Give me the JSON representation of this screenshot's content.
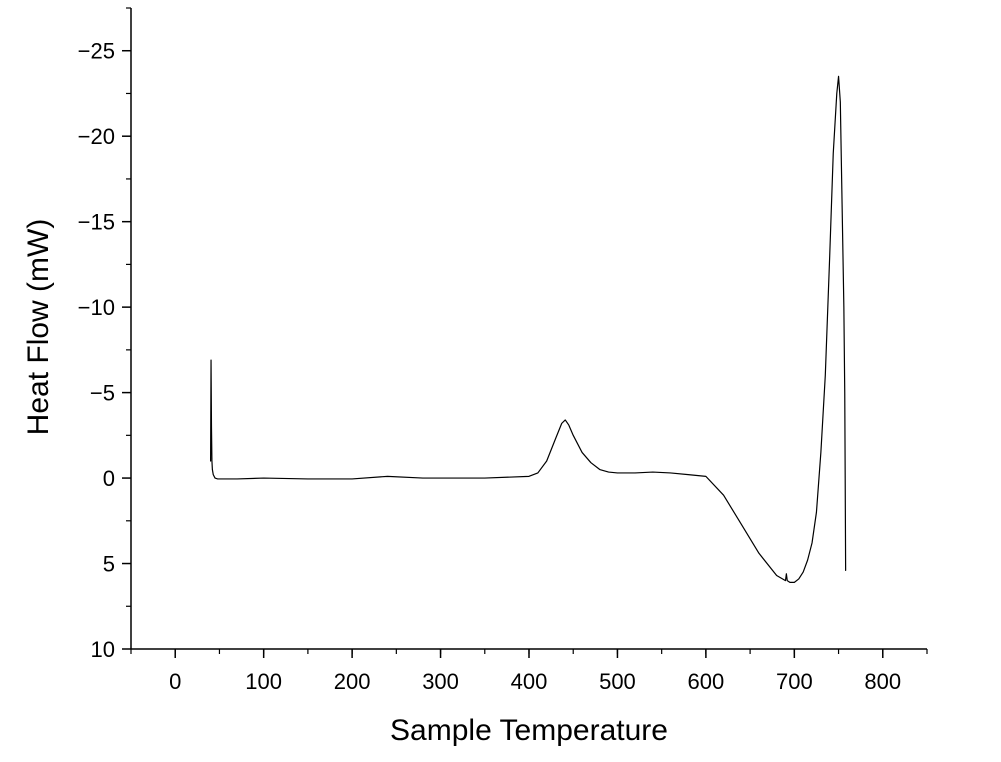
{
  "chart_data": {
    "type": "line",
    "title": "",
    "xlabel": "Sample Temperature",
    "ylabel": "Heat Flow (mW)",
    "xlim": [
      -50,
      850
    ],
    "ylim": [
      10,
      -27.5
    ],
    "y_inverted": true,
    "grid": false,
    "legend": "none",
    "x_ticks": [
      0,
      100,
      200,
      300,
      400,
      500,
      600,
      700,
      800
    ],
    "x_tick_labels": [
      "0",
      "100",
      "200",
      "300",
      "400",
      "500",
      "600",
      "700",
      "800"
    ],
    "y_ticks": [
      -25,
      -20,
      -15,
      -10,
      -5,
      0,
      5,
      10
    ],
    "y_tick_labels": [
      "−25",
      "−20",
      "−15",
      "−10",
      "−5",
      "0",
      "5",
      "10"
    ],
    "series": [
      {
        "line_color": "#000000",
        "x": [
          40,
          40.5,
          41,
          41.5,
          42,
          43,
          45,
          48,
          55,
          70,
          100,
          150,
          200,
          240,
          280,
          300,
          350,
          400,
          410,
          420,
          430,
          437,
          441,
          445,
          450,
          460,
          470,
          480,
          490,
          500,
          520,
          540,
          560,
          580,
          600,
          620,
          640,
          660,
          680,
          690,
          691,
          692,
          695,
          700,
          705,
          710,
          715,
          720,
          725,
          730,
          735,
          740,
          744,
          748,
          750,
          752,
          754,
          756,
          757,
          757.5,
          758
        ],
        "y": [
          -1.0,
          -6.9,
          -3.0,
          -1.0,
          -0.5,
          -0.2,
          0.0,
          0.05,
          0.05,
          0.05,
          0.0,
          0.05,
          0.05,
          -0.1,
          0.0,
          0.0,
          0.0,
          -0.1,
          -0.3,
          -1.0,
          -2.3,
          -3.2,
          -3.4,
          -3.1,
          -2.5,
          -1.5,
          -0.9,
          -0.5,
          -0.35,
          -0.3,
          -0.3,
          -0.35,
          -0.3,
          -0.2,
          -0.1,
          1.0,
          2.7,
          4.4,
          5.7,
          6.0,
          5.6,
          6.0,
          6.1,
          6.1,
          5.9,
          5.5,
          4.8,
          3.8,
          2.0,
          -1.5,
          -6.0,
          -13.0,
          -19.0,
          -22.5,
          -23.5,
          -22.0,
          -16.0,
          -10.0,
          -5.0,
          0.0,
          5.4
        ]
      }
    ]
  }
}
